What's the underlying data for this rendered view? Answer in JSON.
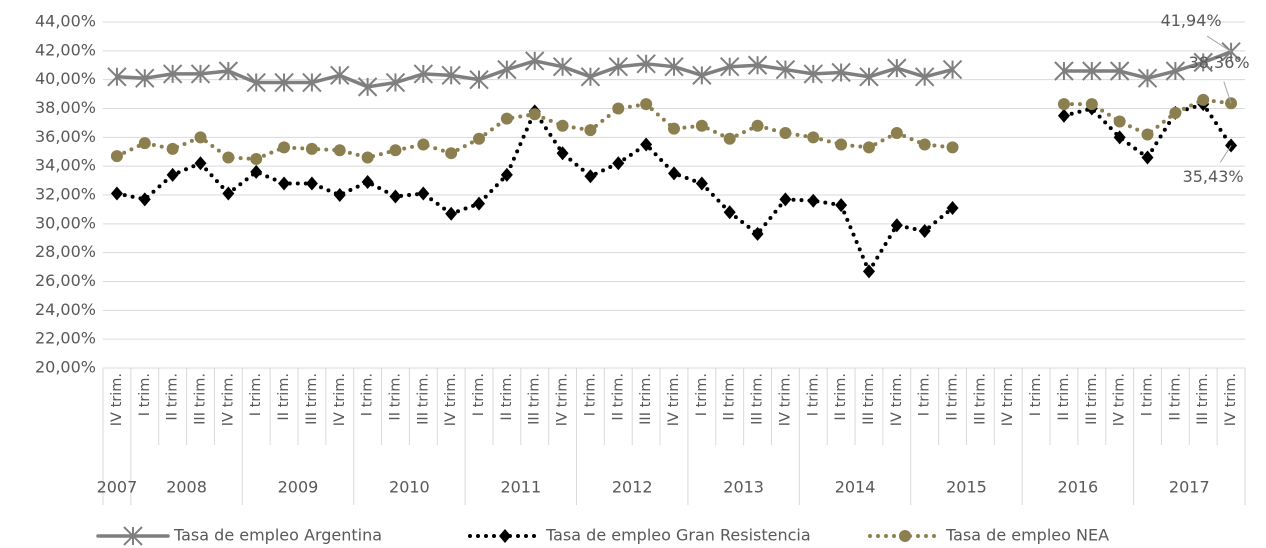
{
  "chart_data": {
    "type": "line",
    "categories": [
      "IV trim.",
      "I trim.",
      "II trim.",
      "III trim.",
      "IV trim.",
      "I trim.",
      "II trim.",
      "III trim.",
      "IV trim.",
      "I trim.",
      "II trim.",
      "III trim.",
      "IV trim.",
      "I trim.",
      "II trim.",
      "III trim.",
      "IV trim.",
      "I trim.",
      "II trim.",
      "III trim.",
      "IV trim.",
      "I trim.",
      "II trim.",
      "III trim.",
      "IV trim.",
      "I trim.",
      "II trim.",
      "III trim.",
      "IV trim.",
      "I trim.",
      "II trim.",
      "III trim.",
      "IV trim.",
      "I trim.",
      "II trim.",
      "III trim.",
      "IV trim.",
      "I trim.",
      "II trim.",
      "III trim.",
      "IV trim."
    ],
    "years": [
      "2007",
      "2008",
      null,
      null,
      null,
      "2009",
      null,
      null,
      null,
      "2010",
      null,
      null,
      null,
      "2011",
      null,
      null,
      null,
      "2012",
      null,
      null,
      null,
      "2013",
      null,
      null,
      null,
      "2014",
      null,
      null,
      null,
      "2015",
      null,
      null,
      null,
      "2016",
      null,
      null,
      null,
      "2017",
      null,
      null,
      null
    ],
    "series": [
      {
        "name": "Tasa de empleo Argentina",
        "color": "#7f7f7f",
        "marker": "star",
        "dash": "solid",
        "values": [
          40.2,
          40.1,
          40.4,
          40.4,
          40.6,
          39.8,
          39.8,
          39.8,
          40.3,
          39.5,
          39.8,
          40.4,
          40.3,
          40.0,
          40.7,
          41.3,
          40.9,
          40.2,
          40.9,
          41.1,
          40.9,
          40.3,
          40.9,
          41.0,
          40.7,
          40.4,
          40.5,
          40.2,
          40.8,
          40.2,
          40.7,
          null,
          null,
          null,
          40.6,
          40.6,
          40.6,
          40.1,
          40.6,
          41.2,
          41.94
        ],
        "value_labels": [
          null,
          null,
          null,
          null,
          null,
          null,
          null,
          null,
          null,
          null,
          null,
          null,
          null,
          null,
          null,
          null,
          null,
          null,
          null,
          null,
          null,
          null,
          null,
          null,
          null,
          null,
          null,
          null,
          null,
          null,
          null,
          null,
          null,
          null,
          null,
          null,
          null,
          null,
          null,
          null,
          "41,94%"
        ]
      },
      {
        "name": "Tasa de empleo Gran Resistencia",
        "color": "#000000",
        "marker": "diamond",
        "dash": "dotted",
        "values": [
          32.1,
          31.7,
          33.4,
          34.2,
          32.1,
          33.6,
          32.8,
          32.8,
          32.0,
          32.9,
          31.9,
          32.1,
          30.7,
          31.4,
          33.4,
          37.8,
          34.9,
          33.3,
          34.2,
          35.5,
          33.5,
          32.8,
          30.8,
          29.3,
          31.7,
          31.6,
          31.3,
          26.7,
          29.9,
          29.5,
          31.1,
          null,
          null,
          null,
          37.5,
          38.0,
          36.0,
          34.6,
          37.7,
          38.3,
          35.43
        ],
        "value_labels": [
          null,
          null,
          null,
          null,
          null,
          null,
          null,
          null,
          null,
          null,
          null,
          null,
          null,
          null,
          null,
          null,
          null,
          null,
          null,
          null,
          null,
          null,
          null,
          null,
          null,
          null,
          null,
          null,
          null,
          null,
          null,
          null,
          null,
          null,
          null,
          null,
          null,
          null,
          null,
          null,
          "35,43%"
        ]
      },
      {
        "name": "Tasa de empleo NEA",
        "color": "#8c7f4f",
        "marker": "circle",
        "dash": "dotted",
        "values": [
          34.7,
          35.6,
          35.2,
          36.0,
          34.6,
          34.5,
          35.3,
          35.2,
          35.1,
          34.6,
          35.1,
          35.5,
          34.9,
          35.9,
          37.3,
          37.6,
          36.8,
          36.5,
          38.0,
          38.3,
          36.6,
          36.8,
          35.9,
          36.8,
          36.3,
          36.0,
          35.5,
          35.3,
          36.3,
          35.5,
          35.3,
          null,
          null,
          null,
          38.3,
          38.3,
          37.1,
          36.2,
          37.7,
          38.6,
          38.36
        ],
        "value_labels": [
          null,
          null,
          null,
          null,
          null,
          null,
          null,
          null,
          null,
          null,
          null,
          null,
          null,
          null,
          null,
          null,
          null,
          null,
          null,
          null,
          null,
          null,
          null,
          null,
          null,
          null,
          null,
          null,
          null,
          null,
          null,
          null,
          null,
          null,
          null,
          null,
          null,
          null,
          null,
          null,
          "38,36%"
        ]
      }
    ],
    "ylim": [
      20,
      44
    ],
    "yticks": [
      {
        "value": 20,
        "label": "20,00%"
      },
      {
        "value": 22,
        "label": "22,00%"
      },
      {
        "value": 24,
        "label": "24,00%"
      },
      {
        "value": 26,
        "label": "26,00%"
      },
      {
        "value": 28,
        "label": "28,00%"
      },
      {
        "value": 30,
        "label": "30,00%"
      },
      {
        "value": 32,
        "label": "32,00%"
      },
      {
        "value": 34,
        "label": "34,00%"
      },
      {
        "value": 36,
        "label": "36,00%"
      },
      {
        "value": 38,
        "label": "38,00%"
      },
      {
        "value": 40,
        "label": "40,00%"
      },
      {
        "value": 42,
        "label": "42,00%"
      },
      {
        "value": 44,
        "label": "44,00%"
      }
    ],
    "grid": true,
    "legend": "bottom"
  }
}
